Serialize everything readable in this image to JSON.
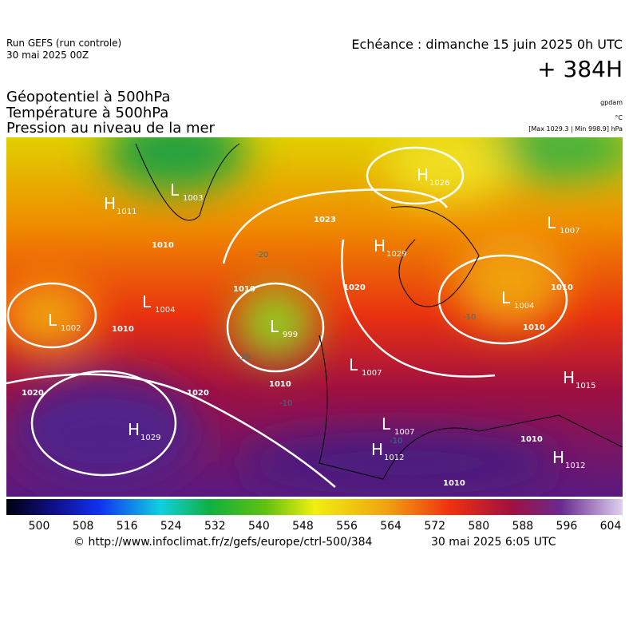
{
  "header": {
    "run": "Run GEFS (run controle)",
    "run_date": "30 mai 2025 00Z",
    "valid": "Echéance : dimanche 15 juin 2025 0h UTC",
    "lead": "+ 384H",
    "fields": [
      "Géopotentiel à 500hPa",
      "Température à 500hPa",
      "Pression au niveau de la mer"
    ],
    "units": [
      "gpdam",
      "°C",
      "[Max 1029.3 | Min 998.9] hPa"
    ]
  },
  "map": {
    "centers": [
      {
        "letter": "H",
        "value": "1011"
      },
      {
        "letter": "L",
        "value": "1003"
      },
      {
        "letter": "H",
        "value": "1026"
      },
      {
        "letter": "L",
        "value": "1007"
      },
      {
        "letter": "H",
        "value": "1029"
      },
      {
        "letter": "L",
        "value": "1004"
      },
      {
        "letter": "L",
        "value": "1002"
      },
      {
        "letter": "L",
        "value": "999"
      },
      {
        "letter": "L",
        "value": "1004"
      },
      {
        "letter": "L",
        "value": "1007"
      },
      {
        "letter": "H",
        "value": "1015"
      },
      {
        "letter": "H",
        "value": "1029"
      },
      {
        "letter": "L",
        "value": "1007"
      },
      {
        "letter": "H",
        "value": "1012"
      },
      {
        "letter": "H",
        "value": "1012"
      }
    ],
    "isobar_labels": [
      "1023",
      "1010",
      "1010",
      "1020",
      "1020",
      "1010",
      "1010",
      "1020",
      "1010",
      "1010",
      "1010",
      "1010"
    ],
    "temperature_labels": [
      "-20",
      "-20",
      "-10",
      "-10",
      "-10"
    ]
  },
  "colorbar": {
    "ticks": [
      500,
      508,
      516,
      524,
      532,
      540,
      548,
      556,
      564,
      572,
      580,
      588,
      596,
      604
    ]
  },
  "footer": {
    "source": "© http://www.infoclimat.fr/z/gefs/europe/ctrl-500/384",
    "issued": "30 mai 2025  6:05 UTC"
  }
}
